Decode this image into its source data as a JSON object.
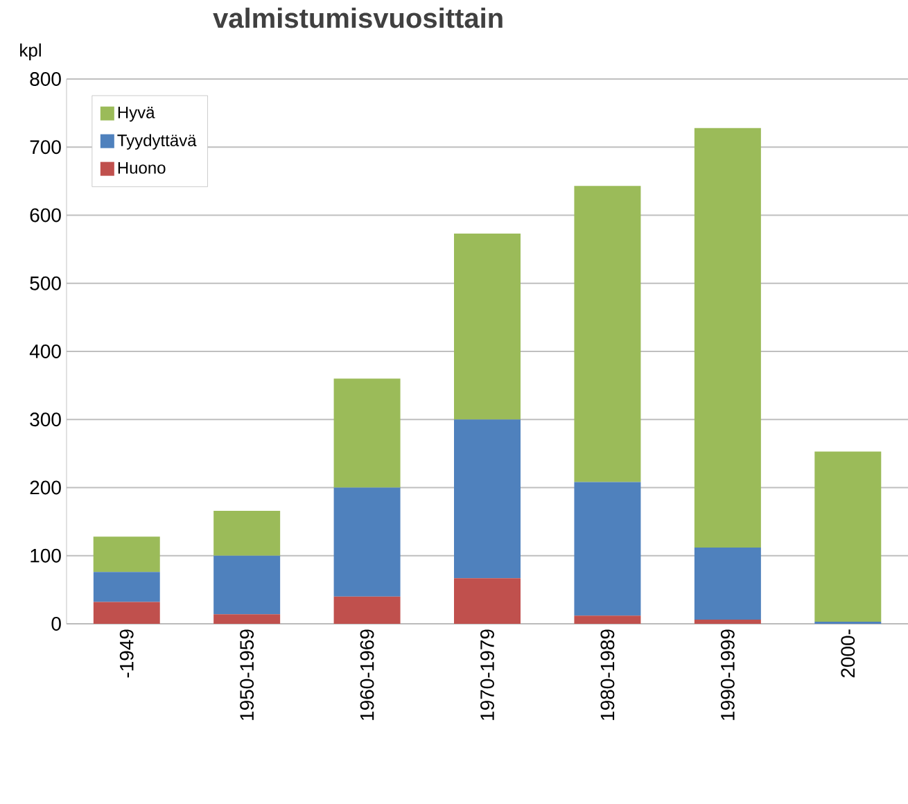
{
  "chart_data": {
    "type": "bar",
    "title": "valmistumisvuosittain",
    "ylabel": "kpl",
    "categories": [
      "-1949",
      "1950-1959",
      "1960-1969",
      "1970-1979",
      "1980-1989",
      "1990-1999",
      "2000-"
    ],
    "stacked": true,
    "series": [
      {
        "name": "Huono",
        "color": "#c0504d",
        "values": [
          32,
          14,
          40,
          67,
          12,
          6,
          0
        ]
      },
      {
        "name": "Tyydyttävä",
        "color": "#4f81bd",
        "values": [
          44,
          86,
          160,
          233,
          196,
          106,
          3
        ]
      },
      {
        "name": "Hyvä",
        "color": "#9bbb59",
        "values": [
          52,
          66,
          160,
          273,
          435,
          616,
          250
        ]
      }
    ],
    "ylim": [
      0,
      800
    ],
    "yticks": [
      0,
      100,
      200,
      300,
      400,
      500,
      600,
      700,
      800
    ],
    "grid": "y",
    "legend": "top left"
  }
}
